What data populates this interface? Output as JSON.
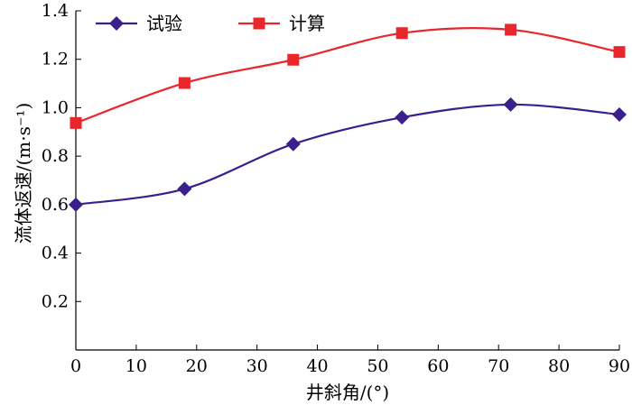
{
  "chart_data": {
    "type": "line",
    "title": "",
    "xlabel": "井斜角/(°)",
    "ylabel": "流体返速/(m·s⁻¹)",
    "xlim": [
      0,
      90
    ],
    "ylim": [
      0,
      1.4
    ],
    "xticks": [
      0,
      10,
      20,
      30,
      40,
      50,
      60,
      70,
      80,
      90
    ],
    "yticks": [
      0.2,
      0.4,
      0.6,
      0.8,
      1.0,
      1.2,
      1.4
    ],
    "xtick_labels": [
      "0",
      "10",
      "20",
      "30",
      "40",
      "50",
      "60",
      "70",
      "80",
      "90"
    ],
    "ytick_labels": [
      "0.2",
      "0.4",
      "0.6",
      "0.8",
      "1.0",
      "1.2",
      "1.4"
    ],
    "grid": false,
    "legend_position": "top-left",
    "x": [
      0,
      18,
      36,
      54,
      72,
      90
    ],
    "series": [
      {
        "name": "试验",
        "color": "#3b1f8c",
        "marker": "diamond",
        "values": [
          0.6,
          0.665,
          0.85,
          0.96,
          1.013,
          0.972
        ]
      },
      {
        "name": "计算",
        "color": "#e8262b",
        "marker": "square",
        "values": [
          0.937,
          1.102,
          1.198,
          1.308,
          1.322,
          1.23
        ]
      }
    ]
  }
}
